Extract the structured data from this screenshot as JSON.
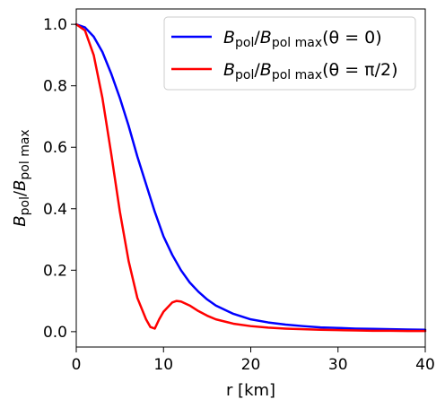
{
  "chart_data": {
    "type": "line",
    "xlabel": "r [km]",
    "ylabel": {
      "main": "B",
      "sub": "pol",
      "slash": "/",
      "main2": "B",
      "sub2": "pol max"
    },
    "xlim": [
      0,
      40
    ],
    "ylim": [
      -0.05,
      1.05
    ],
    "xticks": [
      "0",
      "10",
      "20",
      "30",
      "40"
    ],
    "yticks": [
      "0.0",
      "0.2",
      "0.4",
      "0.6",
      "0.8",
      "1.0"
    ],
    "grid": false,
    "legend_position": "top-right",
    "series": [
      {
        "name": "Bpol/Bpol max(θ = 0)",
        "legend": {
          "b": "B",
          "sub1": "pol",
          "slash": "/",
          "b2": "B",
          "sub2": "pol max",
          "tail": "(θ = 0)"
        },
        "color": "#0000ff",
        "x": [
          0,
          1,
          2,
          3,
          4,
          5,
          6,
          7,
          8,
          9,
          10,
          11,
          12,
          13,
          14,
          15,
          16,
          18,
          20,
          22,
          24,
          26,
          28,
          30,
          32,
          34,
          36,
          38,
          40
        ],
        "y": [
          1.0,
          0.99,
          0.96,
          0.91,
          0.84,
          0.76,
          0.67,
          0.57,
          0.48,
          0.39,
          0.31,
          0.25,
          0.2,
          0.16,
          0.13,
          0.105,
          0.085,
          0.058,
          0.04,
          0.03,
          0.023,
          0.018,
          0.014,
          0.012,
          0.01,
          0.009,
          0.008,
          0.007,
          0.006
        ]
      },
      {
        "name": "Bpol/Bpol max(θ = π/2)",
        "legend": {
          "b": "B",
          "sub1": "pol",
          "slash": "/",
          "b2": "B",
          "sub2": "pol max",
          "tail": "(θ = π/2)"
        },
        "color": "#ff0000",
        "x": [
          0,
          1,
          2,
          3,
          4,
          5,
          6,
          7,
          8,
          8.5,
          9,
          9.5,
          10,
          11,
          11.5,
          12,
          13,
          14,
          15,
          16,
          18,
          20,
          22,
          24,
          26,
          28,
          30,
          32,
          34,
          36,
          38,
          40
        ],
        "y": [
          1.0,
          0.98,
          0.9,
          0.76,
          0.58,
          0.39,
          0.23,
          0.11,
          0.04,
          0.015,
          0.01,
          0.04,
          0.065,
          0.095,
          0.1,
          0.098,
          0.085,
          0.067,
          0.052,
          0.04,
          0.026,
          0.018,
          0.013,
          0.01,
          0.008,
          0.006,
          0.005,
          0.004,
          0.003,
          0.003,
          0.002,
          0.002
        ]
      }
    ]
  }
}
